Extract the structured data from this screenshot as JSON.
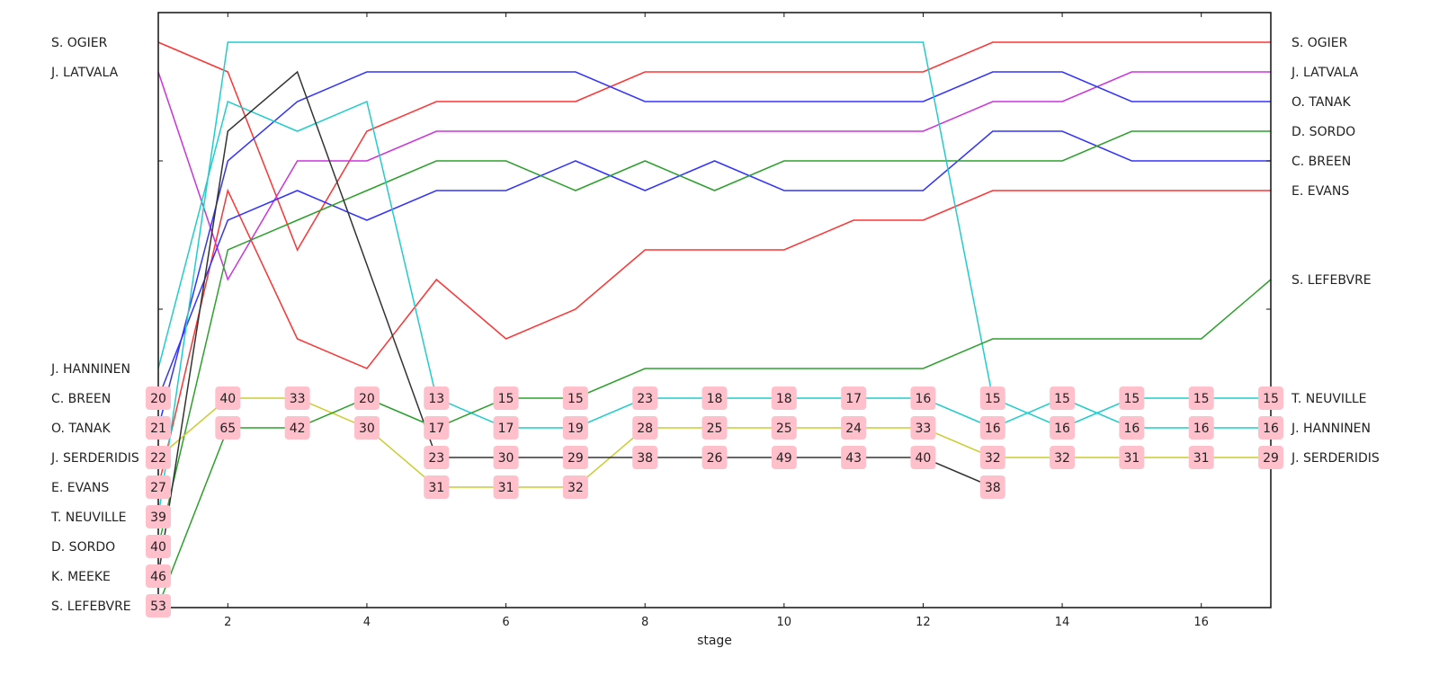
{
  "chart_data": {
    "type": "line",
    "title": "",
    "xlabel": "stage",
    "ylabel": "",
    "x": [
      1,
      2,
      3,
      4,
      5,
      6,
      7,
      8,
      9,
      10,
      11,
      12,
      13,
      14,
      15,
      16,
      17
    ],
    "xticks": [
      2,
      4,
      6,
      8,
      10,
      12,
      14,
      16
    ],
    "xlim": [
      1,
      17
    ],
    "ylim": [
      1,
      20
    ],
    "y_inverted": true,
    "y_meaning": "position (1 = top)",
    "grid": false,
    "left_labels": [
      {
        "pos": 1,
        "name": "S. OGIER"
      },
      {
        "pos": 2,
        "name": "J. LATVALA"
      },
      {
        "pos": 12,
        "name": "J. HANNINEN"
      },
      {
        "pos": 13,
        "name": "C. BREEN"
      },
      {
        "pos": 14,
        "name": "O. TANAK"
      },
      {
        "pos": 15,
        "name": "J. SERDERIDIS"
      },
      {
        "pos": 16,
        "name": "E. EVANS"
      },
      {
        "pos": 17,
        "name": "T. NEUVILLE"
      },
      {
        "pos": 18,
        "name": "D. SORDO"
      },
      {
        "pos": 19,
        "name": "K. MEEKE"
      },
      {
        "pos": 20,
        "name": "S. LEFEBVRE"
      }
    ],
    "right_labels": [
      {
        "pos": 1,
        "name": "S. OGIER"
      },
      {
        "pos": 2,
        "name": "J. LATVALA"
      },
      {
        "pos": 3,
        "name": "O. TANAK"
      },
      {
        "pos": 4,
        "name": "D. SORDO"
      },
      {
        "pos": 5,
        "name": "C. BREEN"
      },
      {
        "pos": 6,
        "name": "E. EVANS"
      },
      {
        "pos": 9,
        "name": "S. LEFEBVRE"
      },
      {
        "pos": 13,
        "name": "T. NEUVILLE"
      },
      {
        "pos": 14,
        "name": "J. HANNINEN"
      },
      {
        "pos": 15,
        "name": "J. SERDERIDIS"
      }
    ],
    "series": [
      {
        "name": "S. OGIER",
        "color": "#ff3333",
        "values": [
          1,
          2,
          8,
          4,
          3,
          3,
          3,
          2,
          2,
          2,
          2,
          2,
          1,
          1,
          1,
          1,
          1
        ]
      },
      {
        "name": "E. EVANS",
        "color": "#ff3333",
        "values": [
          16,
          6,
          11,
          12,
          9,
          11,
          10,
          8,
          8,
          8,
          7,
          7,
          6,
          6,
          6,
          6,
          6
        ]
      },
      {
        "name": "J. LATVALA",
        "color": "#cc33dd",
        "values": [
          2,
          9,
          5,
          5,
          4,
          4,
          4,
          4,
          4,
          4,
          4,
          4,
          3,
          3,
          2,
          2,
          2
        ]
      },
      {
        "name": "O. TANAK",
        "color": "#3333ff",
        "values": [
          14,
          5,
          3,
          2,
          2,
          2,
          2,
          3,
          3,
          3,
          3,
          3,
          2,
          2,
          3,
          3,
          3
        ]
      },
      {
        "name": "C. BREEN",
        "color": "#3333ff",
        "values": [
          13,
          7,
          6,
          7,
          6,
          6,
          5,
          6,
          5,
          6,
          6,
          6,
          4,
          4,
          5,
          5,
          5
        ]
      },
      {
        "name": "D. SORDO",
        "color": "#2ca02c",
        "values": [
          18,
          8,
          7,
          6,
          5,
          5,
          6,
          5,
          6,
          5,
          5,
          5,
          5,
          5,
          4,
          4,
          4
        ]
      },
      {
        "name": "T. NEUVILLE",
        "color": "#22cccc",
        "values": [
          17,
          1,
          1,
          1,
          1,
          1,
          1,
          1,
          1,
          1,
          1,
          1,
          13,
          14,
          13,
          13,
          13
        ]
      },
      {
        "name": "J. HANNINEN",
        "color": "#22cccc",
        "values": [
          12,
          3,
          4,
          3,
          13,
          14,
          14,
          13,
          13,
          13,
          13,
          13,
          14,
          13,
          14,
          14,
          14
        ]
      },
      {
        "name": "J. SERDERIDIS",
        "color": "#cccc33",
        "values": [
          15,
          13,
          13,
          14,
          16,
          16,
          16,
          14,
          14,
          14,
          14,
          14,
          15,
          15,
          15,
          15,
          15
        ]
      },
      {
        "name": "K. MEEKE",
        "color": "#333333",
        "values": [
          19,
          4,
          2,
          null,
          15,
          15,
          15,
          15,
          15,
          15,
          15,
          15,
          16,
          null,
          null,
          null,
          null
        ]
      },
      {
        "name": "S. LEFEBVRE",
        "color": "#2ca02c",
        "values": [
          20,
          14,
          14,
          13,
          14,
          13,
          13,
          12,
          12,
          12,
          12,
          12,
          11,
          11,
          11,
          11,
          9
        ]
      }
    ],
    "annotations": [
      {
        "stage": 1,
        "pos": 13,
        "text": "20"
      },
      {
        "stage": 1,
        "pos": 14,
        "text": "21"
      },
      {
        "stage": 1,
        "pos": 15,
        "text": "22"
      },
      {
        "stage": 1,
        "pos": 16,
        "text": "27"
      },
      {
        "stage": 1,
        "pos": 17,
        "text": "39"
      },
      {
        "stage": 1,
        "pos": 18,
        "text": "40"
      },
      {
        "stage": 1,
        "pos": 19,
        "text": "46"
      },
      {
        "stage": 1,
        "pos": 20,
        "text": "53"
      },
      {
        "stage": 2,
        "pos": 13,
        "text": "40"
      },
      {
        "stage": 2,
        "pos": 14,
        "text": "65"
      },
      {
        "stage": 3,
        "pos": 13,
        "text": "33"
      },
      {
        "stage": 3,
        "pos": 14,
        "text": "42"
      },
      {
        "stage": 4,
        "pos": 13,
        "text": "20"
      },
      {
        "stage": 4,
        "pos": 14,
        "text": "30"
      },
      {
        "stage": 5,
        "pos": 13,
        "text": "13"
      },
      {
        "stage": 5,
        "pos": 14,
        "text": "17"
      },
      {
        "stage": 5,
        "pos": 15,
        "text": "23"
      },
      {
        "stage": 5,
        "pos": 16,
        "text": "31"
      },
      {
        "stage": 6,
        "pos": 13,
        "text": "15"
      },
      {
        "stage": 6,
        "pos": 14,
        "text": "17"
      },
      {
        "stage": 6,
        "pos": 15,
        "text": "30"
      },
      {
        "stage": 6,
        "pos": 16,
        "text": "31"
      },
      {
        "stage": 7,
        "pos": 13,
        "text": "15"
      },
      {
        "stage": 7,
        "pos": 14,
        "text": "19"
      },
      {
        "stage": 7,
        "pos": 15,
        "text": "29"
      },
      {
        "stage": 7,
        "pos": 16,
        "text": "32"
      },
      {
        "stage": 8,
        "pos": 13,
        "text": "23"
      },
      {
        "stage": 8,
        "pos": 14,
        "text": "28"
      },
      {
        "stage": 8,
        "pos": 15,
        "text": "38"
      },
      {
        "stage": 9,
        "pos": 13,
        "text": "18"
      },
      {
        "stage": 9,
        "pos": 14,
        "text": "25"
      },
      {
        "stage": 9,
        "pos": 15,
        "text": "26"
      },
      {
        "stage": 10,
        "pos": 13,
        "text": "18"
      },
      {
        "stage": 10,
        "pos": 14,
        "text": "25"
      },
      {
        "stage": 10,
        "pos": 15,
        "text": "49"
      },
      {
        "stage": 11,
        "pos": 13,
        "text": "17"
      },
      {
        "stage": 11,
        "pos": 14,
        "text": "24"
      },
      {
        "stage": 11,
        "pos": 15,
        "text": "43"
      },
      {
        "stage": 12,
        "pos": 13,
        "text": "16"
      },
      {
        "stage": 12,
        "pos": 14,
        "text": "33"
      },
      {
        "stage": 12,
        "pos": 15,
        "text": "40"
      },
      {
        "stage": 13,
        "pos": 13,
        "text": "15"
      },
      {
        "stage": 13,
        "pos": 14,
        "text": "16"
      },
      {
        "stage": 13,
        "pos": 15,
        "text": "32"
      },
      {
        "stage": 13,
        "pos": 16,
        "text": "38"
      },
      {
        "stage": 14,
        "pos": 13,
        "text": "15"
      },
      {
        "stage": 14,
        "pos": 14,
        "text": "16"
      },
      {
        "stage": 14,
        "pos": 15,
        "text": "32"
      },
      {
        "stage": 15,
        "pos": 13,
        "text": "15"
      },
      {
        "stage": 15,
        "pos": 14,
        "text": "16"
      },
      {
        "stage": 15,
        "pos": 15,
        "text": "31"
      },
      {
        "stage": 16,
        "pos": 13,
        "text": "15"
      },
      {
        "stage": 16,
        "pos": 14,
        "text": "16"
      },
      {
        "stage": 16,
        "pos": 15,
        "text": "31"
      },
      {
        "stage": 17,
        "pos": 13,
        "text": "15"
      },
      {
        "stage": 17,
        "pos": 14,
        "text": "16"
      },
      {
        "stage": 17,
        "pos": 15,
        "text": "29"
      }
    ],
    "annotation_box_color": "#ffc0cb"
  }
}
